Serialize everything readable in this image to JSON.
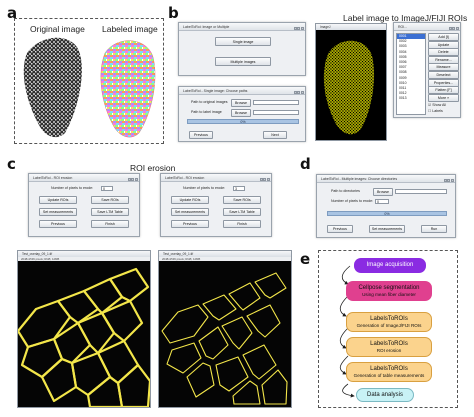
{
  "panels": {
    "a": {
      "letter": "a",
      "captions": [
        "Original image",
        "Labeled image"
      ]
    },
    "b": {
      "letter": "b",
      "heading": "Label image to ImageJ/FIJI ROIs",
      "win1": {
        "title": "LabelToRoi: Image or Multiple",
        "buttons": [
          "Single image",
          "Multiple images"
        ]
      },
      "win2": {
        "title": "LabelToRoi - Single image: Choose paths",
        "path_labels": [
          "Path to original images",
          "Path to label image"
        ],
        "browse_label": "Browse",
        "progress": "0%",
        "buttons": [
          "Previous",
          "Next"
        ]
      },
      "fiji_window_title": "ImageJ",
      "roi_manager": {
        "title": "ROI...",
        "items": [
          "0001",
          "0002",
          "0003",
          "0004",
          "0005",
          "0006",
          "0007",
          "0008",
          "0009",
          "0010",
          "0011",
          "0012",
          "0013"
        ],
        "buttons": [
          "Add [t]",
          "Update",
          "Delete",
          "Rename...",
          "Measure",
          "Deselect",
          "Properties...",
          "Flatten [F]",
          "More »"
        ],
        "checks": [
          "Show All",
          "Labels"
        ]
      }
    },
    "c": {
      "letter": "c",
      "heading": "ROI erosion",
      "win_left": {
        "title": "LabelToRoi - ROI erosion",
        "erode_label": "Number of pixels to erode:",
        "erode_value": "0",
        "buttons": [
          "Update ROIs",
          "Save ROIs",
          "Set measurements",
          "Save LTM Table",
          "Previous",
          "Finish"
        ]
      },
      "win_right": {
        "title": "LabelToRoi - ROI erosion",
        "erode_label": "Number of pixels to erode:",
        "erode_value": "3",
        "buttons": [
          "Update ROIs",
          "Save ROIs",
          "Set measurements",
          "Save LTM Table",
          "Previous",
          "Finish"
        ]
      },
      "img_left": {
        "title": "Test_overlay_09_1.tif",
        "sub": "2048x1536 pixels; RGB; 12MB"
      },
      "img_right": {
        "title": "Test_overlay_09_1.tif",
        "sub": "2048x1536 pixels; RGB; 12MB"
      }
    },
    "d": {
      "letter": "d",
      "win": {
        "title": "LabelToRoi - Multiple images: Choose directories",
        "dir_label": "Path to directories",
        "erode_label": "Number of pixels to erode:",
        "erode_value": "0",
        "browse_label": "Browse",
        "progress": "0%",
        "buttons": [
          "Previous",
          "Set measurements",
          "Run"
        ]
      }
    },
    "e": {
      "letter": "e",
      "steps": [
        {
          "title": "Image acquisition",
          "sub": ""
        },
        {
          "title": "Cellpose segmentation",
          "sub": "Using mean fiber diameter"
        },
        {
          "title": "LabelsToROIs",
          "sub": "Generation of ImageJ/FIJI ROIs"
        },
        {
          "title": "LabelsToROIs",
          "sub": "ROI erosion"
        },
        {
          "title": "LabelsToROIs",
          "sub": "Generation of table measurements"
        },
        {
          "title": "Data analysis",
          "sub": ""
        }
      ]
    }
  },
  "colors": {
    "accent_purple": "#8a2be2",
    "accent_pink": "#e0408f",
    "accent_orange": "#fbd38d",
    "accent_cyan": "#c8f2f6",
    "roi_yellow": "#ffff00",
    "fiber_yellow": "#f3e64a"
  }
}
